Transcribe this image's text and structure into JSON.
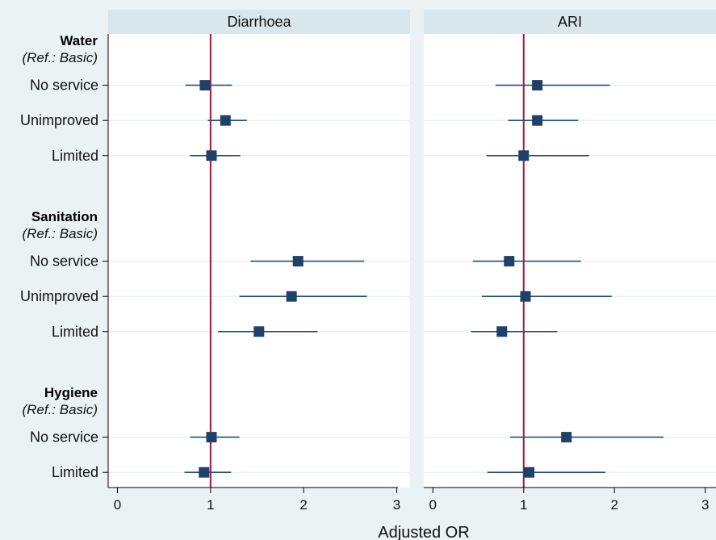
{
  "chart_data": {
    "type": "forest",
    "xlabel": "Adjusted OR",
    "xlim": [
      -0.1,
      3.1
    ],
    "xticks": [
      0,
      1,
      2,
      3
    ],
    "reference_line": 1,
    "colors": {
      "reference": "#a6173a",
      "marker": "#1f4068",
      "ci": "#1f4e79",
      "strip": "#d9e6eb",
      "background": "#eaf2f3"
    },
    "panels": [
      "Diarrhoea",
      "ARI"
    ],
    "groups": [
      {
        "title": "Water",
        "ref": "(Ref.: Basic)",
        "rows": [
          "No service",
          "Unimproved",
          "Limited"
        ]
      },
      {
        "title": "Sanitation",
        "ref": "(Ref.: Basic)",
        "rows": [
          "No service",
          "Unimproved",
          "Limited"
        ]
      },
      {
        "title": "Hygiene",
        "ref": "(Ref.: Basic)",
        "rows": [
          "No service",
          "Limited"
        ]
      }
    ],
    "series": [
      {
        "name": "Diarrhoea",
        "points": [
          {
            "group": "Water",
            "label": "No service",
            "or": 0.94,
            "lo": 0.73,
            "hi": 1.23
          },
          {
            "group": "Water",
            "label": "Unimproved",
            "or": 1.16,
            "lo": 0.97,
            "hi": 1.39
          },
          {
            "group": "Water",
            "label": "Limited",
            "or": 1.01,
            "lo": 0.78,
            "hi": 1.32
          },
          {
            "group": "Sanitation",
            "label": "No service",
            "or": 1.94,
            "lo": 1.43,
            "hi": 2.65
          },
          {
            "group": "Sanitation",
            "label": "Unimproved",
            "or": 1.87,
            "lo": 1.31,
            "hi": 2.68
          },
          {
            "group": "Sanitation",
            "label": "Limited",
            "or": 1.52,
            "lo": 1.08,
            "hi": 2.15
          },
          {
            "group": "Hygiene",
            "label": "No service",
            "or": 1.01,
            "lo": 0.78,
            "hi": 1.31
          },
          {
            "group": "Hygiene",
            "label": "Limited",
            "or": 0.93,
            "lo": 0.72,
            "hi": 1.22
          }
        ]
      },
      {
        "name": "ARI",
        "points": [
          {
            "group": "Water",
            "label": "No service",
            "or": 1.15,
            "lo": 0.69,
            "hi": 1.95
          },
          {
            "group": "Water",
            "label": "Unimproved",
            "or": 1.15,
            "lo": 0.83,
            "hi": 1.6
          },
          {
            "group": "Water",
            "label": "Limited",
            "or": 1.0,
            "lo": 0.59,
            "hi": 1.72
          },
          {
            "group": "Sanitation",
            "label": "No service",
            "or": 0.84,
            "lo": 0.44,
            "hi": 1.63
          },
          {
            "group": "Sanitation",
            "label": "Unimproved",
            "or": 1.02,
            "lo": 0.54,
            "hi": 1.97
          },
          {
            "group": "Sanitation",
            "label": "Limited",
            "or": 0.76,
            "lo": 0.42,
            "hi": 1.37
          },
          {
            "group": "Hygiene",
            "label": "No service",
            "or": 1.47,
            "lo": 0.85,
            "hi": 2.54
          },
          {
            "group": "Hygiene",
            "label": "Limited",
            "or": 1.06,
            "lo": 0.6,
            "hi": 1.9
          }
        ]
      }
    ]
  }
}
